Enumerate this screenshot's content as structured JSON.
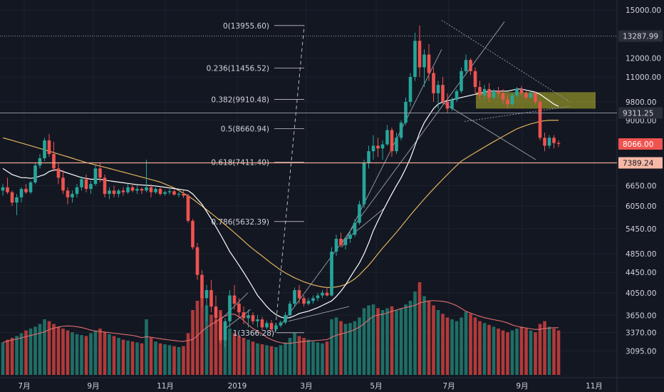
{
  "chart_data": {
    "type": "candlestick",
    "colors": {
      "background": "#131722",
      "grid": "#1e222d",
      "up": "#26a69a",
      "down": "#ef5350",
      "vol_up": "#1f6f66",
      "vol_down": "#b23a3a",
      "ma_short": "#ffffff",
      "ma_long": "#e0b25b",
      "vol_ma": "#e07070",
      "axis_text": "#d1d4dc",
      "fib_line": "#c8c8c8",
      "trend": "#9aa0ac",
      "zone": "#b8b82a",
      "support": "#f0a98f"
    },
    "y_axis": {
      "scale": "log",
      "range": [
        2900,
        15500
      ],
      "ticks": [
        "15000.00",
        "12000.00",
        "11000.00",
        "9800.00",
        "9000.00",
        "6650.00",
        "6050.00",
        "5450.00",
        "4850.00",
        "4450.00",
        "4050.00",
        "3650.00",
        "3370.00",
        "3095.00"
      ]
    },
    "x_axis": {
      "ticks": [
        "7月",
        "9月",
        "11月",
        "2019",
        "3月",
        "5月",
        "7月",
        "9月",
        "11月"
      ]
    },
    "price_labels": [
      {
        "text": "13287.99",
        "value": 13287.99,
        "style": "dark"
      },
      {
        "text": "9311.25",
        "value": 9311.25,
        "style": "dark"
      },
      {
        "text": "8066.00",
        "value": 8066.0,
        "style": "red"
      },
      {
        "text": "7389.24",
        "value": 7389.24,
        "style": "salmon"
      }
    ],
    "fib_levels": [
      {
        "label": "0(13955.60)",
        "value": 13955.6
      },
      {
        "label": "0.236(11456.52)",
        "value": 11456.52
      },
      {
        "label": "0.382(9910.48)",
        "value": 9910.48
      },
      {
        "label": "0.5(8660.94)",
        "value": 8660.94
      },
      {
        "label": "0.618(7411.40)",
        "value": 7411.4
      },
      {
        "label": "0.786(5632.39)",
        "value": 5632.39
      },
      {
        "label": "1(3366.28)",
        "value": 3366.28
      }
    ],
    "candles_ohlc": [
      [
        6500,
        6700,
        6350,
        6600
      ],
      [
        6600,
        6900,
        6400,
        6450
      ],
      [
        6450,
        6500,
        6050,
        6150
      ],
      [
        6150,
        6400,
        5800,
        6300
      ],
      [
        6300,
        6600,
        6150,
        6550
      ],
      [
        6550,
        6700,
        6400,
        6450
      ],
      [
        6450,
        6800,
        6400,
        6750
      ],
      [
        6750,
        7400,
        6700,
        7300
      ],
      [
        7300,
        7700,
        7200,
        7550
      ],
      [
        7550,
        8300,
        7450,
        8200
      ],
      [
        8200,
        8450,
        7600,
        7700
      ],
      [
        7700,
        8150,
        7100,
        7200
      ],
      [
        7200,
        7400,
        6700,
        6900
      ],
      [
        6900,
        7150,
        6400,
        6500
      ],
      [
        6500,
        6600,
        6100,
        6300
      ],
      [
        6300,
        6500,
        6150,
        6400
      ],
      [
        6400,
        6700,
        6300,
        6600
      ],
      [
        6600,
        6950,
        6500,
        6850
      ],
      [
        6850,
        7000,
        6450,
        6550
      ],
      [
        6550,
        6800,
        6400,
        6700
      ],
      [
        6700,
        7300,
        6650,
        7200
      ],
      [
        7200,
        7400,
        6750,
        6900
      ],
      [
        6900,
        7000,
        6300,
        6400
      ],
      [
        6400,
        6600,
        6250,
        6500
      ],
      [
        6500,
        6650,
        6300,
        6400
      ],
      [
        6400,
        6550,
        6300,
        6500
      ],
      [
        6500,
        6600,
        6350,
        6450
      ],
      [
        6450,
        6700,
        6400,
        6600
      ],
      [
        6600,
        6700,
        6450,
        6500
      ],
      [
        6500,
        6650,
        6400,
        6550
      ],
      [
        6550,
        6600,
        6400,
        6500
      ],
      [
        6500,
        7500,
        6450,
        6600
      ],
      [
        6600,
        6700,
        6300,
        6450
      ],
      [
        6450,
        6600,
        6400,
        6550
      ],
      [
        6550,
        6620,
        6350,
        6400
      ],
      [
        6400,
        6500,
        6350,
        6450
      ],
      [
        6450,
        6550,
        6380,
        6480
      ],
      [
        6480,
        6520,
        6350,
        6380
      ],
      [
        6380,
        6450,
        6300,
        6400
      ],
      [
        6400,
        6500,
        6280,
        6350
      ],
      [
        6350,
        6400,
        5600,
        5650
      ],
      [
        5650,
        5700,
        4950,
        5000
      ],
      [
        5000,
        5100,
        4300,
        4400
      ],
      [
        4400,
        4500,
        3800,
        3950
      ],
      [
        3950,
        4200,
        3550,
        4100
      ],
      [
        4100,
        4300,
        3700,
        3800
      ],
      [
        3800,
        4000,
        3500,
        3600
      ],
      [
        3600,
        3700,
        3200,
        3250
      ],
      [
        3250,
        3600,
        3150,
        3550
      ],
      [
        3550,
        4100,
        3450,
        4000
      ],
      [
        4000,
        4200,
        3750,
        3850
      ],
      [
        3850,
        3950,
        3600,
        3700
      ],
      [
        3700,
        3800,
        3500,
        3600
      ],
      [
        3600,
        3750,
        3450,
        3650
      ],
      [
        3650,
        3700,
        3500,
        3550
      ],
      [
        3550,
        3650,
        3450,
        3580
      ],
      [
        3580,
        3620,
        3400,
        3450
      ],
      [
        3450,
        3560,
        3420,
        3520
      ],
      [
        3520,
        3570,
        3380,
        3420
      ],
      [
        3420,
        3520,
        3390,
        3480
      ],
      [
        3480,
        3560,
        3450,
        3530
      ],
      [
        3530,
        3700,
        3500,
        3650
      ],
      [
        3650,
        3900,
        3620,
        3850
      ],
      [
        3850,
        4150,
        3800,
        4100
      ],
      [
        4100,
        4200,
        3850,
        3950
      ],
      [
        3950,
        4000,
        3800,
        3850
      ],
      [
        3850,
        3950,
        3820,
        3900
      ],
      [
        3900,
        4000,
        3850,
        3950
      ],
      [
        3950,
        4050,
        3900,
        4000
      ],
      [
        4000,
        4100,
        3950,
        4050
      ],
      [
        4050,
        4150,
        3980,
        4000
      ],
      [
        4000,
        5000,
        3980,
        4900
      ],
      [
        4900,
        5300,
        4800,
        5200
      ],
      [
        5200,
        5350,
        5000,
        5050
      ],
      [
        5050,
        5250,
        4950,
        5200
      ],
      [
        5200,
        5400,
        5100,
        5300
      ],
      [
        5300,
        5700,
        5250,
        5600
      ],
      [
        5600,
        6200,
        5550,
        6100
      ],
      [
        6100,
        7500,
        6000,
        7400
      ],
      [
        7400,
        8000,
        7200,
        7800
      ],
      [
        7800,
        8400,
        7500,
        8000
      ],
      [
        8000,
        8300,
        7600,
        7900
      ],
      [
        7900,
        8200,
        7500,
        8050
      ],
      [
        8050,
        8800,
        8000,
        8600
      ],
      [
        8600,
        8700,
        7600,
        7800
      ],
      [
        7800,
        8500,
        7700,
        8300
      ],
      [
        8300,
        9000,
        8200,
        8900
      ],
      [
        8900,
        10000,
        8800,
        9800
      ],
      [
        9800,
        11200,
        9600,
        11000
      ],
      [
        11000,
        13500,
        10800,
        13000
      ],
      [
        13000,
        13955,
        11000,
        11500
      ],
      [
        11500,
        12500,
        10500,
        12200
      ],
      [
        12200,
        12800,
        10800,
        11200
      ],
      [
        11200,
        11500,
        9800,
        10200
      ],
      [
        10200,
        10800,
        9500,
        10600
      ],
      [
        10600,
        11000,
        9700,
        9800
      ],
      [
        9800,
        10200,
        9300,
        9500
      ],
      [
        9500,
        10000,
        9400,
        9900
      ],
      [
        9900,
        10400,
        9800,
        10300
      ],
      [
        10300,
        11500,
        10200,
        11300
      ],
      [
        11300,
        12200,
        11100,
        11900
      ],
      [
        11900,
        12000,
        11100,
        11300
      ],
      [
        11300,
        11500,
        10200,
        10500
      ],
      [
        10500,
        10800,
        9900,
        10100
      ],
      [
        10100,
        10600,
        9900,
        10400
      ],
      [
        10400,
        10700,
        9800,
        10000
      ],
      [
        10000,
        10400,
        9900,
        10300
      ],
      [
        10300,
        10500,
        10000,
        10200
      ],
      [
        10200,
        10400,
        9700,
        9900
      ],
      [
        9900,
        10100,
        9500,
        9700
      ],
      [
        9700,
        10200,
        9600,
        10100
      ],
      [
        10100,
        10500,
        10000,
        10400
      ],
      [
        10400,
        10550,
        10100,
        10200
      ],
      [
        10200,
        10300,
        9900,
        10000
      ],
      [
        10000,
        10300,
        9950,
        10200
      ],
      [
        10200,
        10250,
        9700,
        9800
      ],
      [
        9800,
        9900,
        8200,
        8300
      ],
      [
        8300,
        8500,
        7800,
        8000
      ],
      [
        8000,
        8400,
        7900,
        8300
      ],
      [
        8300,
        8400,
        7900,
        8100
      ],
      [
        8100,
        8200,
        7950,
        8066
      ]
    ],
    "ma_short": [
      7200,
      7100,
      7000,
      6950,
      6900,
      6900,
      6880,
      6900,
      6950,
      7000,
      7100,
      7150,
      7150,
      7100,
      7050,
      7000,
      6950,
      6900,
      6880,
      6850,
      6850,
      6850,
      6820,
      6800,
      6780,
      6760,
      6740,
      6720,
      6700,
      6680,
      6670,
      6660,
      6650,
      6640,
      6620,
      6600,
      6580,
      6560,
      6540,
      6520,
      6500,
      6400,
      6250,
      6100,
      5900,
      5700,
      5500,
      5300,
      5100,
      4900,
      4750,
      4600,
      4450,
      4300,
      4150,
      4000,
      3900,
      3800,
      3720,
      3660,
      3620,
      3600,
      3610,
      3640,
      3680,
      3700,
      3720,
      3750,
      3780,
      3820,
      3860,
      3900,
      3980,
      4080,
      4200,
      4350,
      4500,
      4650,
      4850,
      5100,
      5400,
      5650,
      5900,
      6150,
      6400,
      6650,
      6900,
      7200,
      7550,
      8000,
      8500,
      8900,
      9200,
      9500,
      9700,
      9800,
      9850,
      9900,
      9950,
      10000,
      10050,
      10100,
      10150,
      10200,
      10250,
      10300,
      10300,
      10300,
      10300,
      10300,
      10350,
      10400,
      10400,
      10350,
      10300,
      10250,
      10150,
      10000,
      9850,
      9700,
      9600
    ],
    "ma_long": [
      8300,
      8250,
      8200,
      8150,
      8100,
      8050,
      8000,
      7950,
      7900,
      7850,
      7800,
      7750,
      7700,
      7650,
      7600,
      7550,
      7500,
      7450,
      7400,
      7360,
      7320,
      7280,
      7240,
      7200,
      7160,
      7120,
      7080,
      7040,
      7000,
      6960,
      6920,
      6880,
      6840,
      6800,
      6760,
      6700,
      6640,
      6580,
      6500,
      6420,
      6340,
      6250,
      6150,
      6050,
      5950,
      5850,
      5750,
      5650,
      5550,
      5450,
      5350,
      5250,
      5150,
      5050,
      4960,
      4880,
      4800,
      4720,
      4640,
      4570,
      4500,
      4440,
      4390,
      4340,
      4300,
      4260,
      4230,
      4200,
      4180,
      4160,
      4150,
      4150,
      4160,
      4180,
      4210,
      4260,
      4320,
      4400,
      4500,
      4600,
      4720,
      4850,
      4980,
      5100,
      5230,
      5360,
      5500,
      5650,
      5800,
      5950,
      6100,
      6250,
      6400,
      6550,
      6700,
      6850,
      7000,
      7150,
      7300,
      7450,
      7550,
      7650,
      7750,
      7850,
      7950,
      8050,
      8150,
      8250,
      8350,
      8450,
      8550,
      8650,
      8720,
      8790,
      8850,
      8900,
      8950,
      8980,
      9000,
      9000,
      9000
    ],
    "volume": [
      35,
      38,
      40,
      42,
      45,
      48,
      50,
      52,
      55,
      60,
      58,
      55,
      52,
      50,
      48,
      46,
      44,
      43,
      42,
      45,
      48,
      50,
      46,
      44,
      42,
      40,
      38,
      37,
      36,
      35,
      34,
      60,
      40,
      36,
      34,
      33,
      32,
      31,
      30,
      31,
      45,
      70,
      80,
      85,
      75,
      65,
      60,
      70,
      55,
      50,
      45,
      42,
      40,
      38,
      36,
      34,
      33,
      32,
      31,
      30,
      32,
      35,
      40,
      45,
      42,
      40,
      38,
      36,
      35,
      34,
      36,
      60,
      62,
      58,
      55,
      56,
      58,
      62,
      72,
      75,
      76,
      72,
      70,
      72,
      74,
      70,
      72,
      76,
      80,
      90,
      100,
      85,
      80,
      75,
      70,
      66,
      62,
      60,
      58,
      62,
      68,
      66,
      62,
      58,
      56,
      54,
      52,
      50,
      48,
      46,
      48,
      50,
      52,
      50,
      48,
      46,
      55,
      58,
      52,
      50,
      48
    ]
  }
}
